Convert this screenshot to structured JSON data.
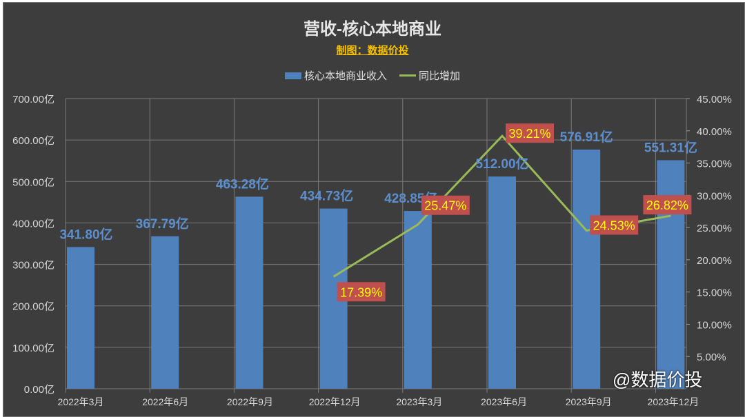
{
  "title": "营收-核心本地商业",
  "subtitle": "制图：数据价投",
  "watermark": "@数据价投",
  "chart_data": {
    "type": "bar+line",
    "title": "营收-核心本地商业",
    "categories": [
      "2022年3月",
      "2022年6月",
      "2022年9月",
      "2022年12月",
      "2023年3月",
      "2023年6月",
      "2023年9月",
      "2023年12月"
    ],
    "series": [
      {
        "name": "核心本地商业收入",
        "type": "bar",
        "axis": "left",
        "color": "#4f81bd",
        "values": [
          341.8,
          367.79,
          463.28,
          434.73,
          428.85,
          512.0,
          576.91,
          551.31
        ],
        "labels": [
          "341.80亿",
          "367.79亿",
          "463.28亿",
          "434.73亿",
          "428.85亿",
          "512.00亿",
          "576.91亿",
          "551.31亿"
        ]
      },
      {
        "name": "同比增加",
        "type": "line",
        "axis": "right",
        "color": "#9bbb59",
        "values": [
          null,
          null,
          null,
          17.39,
          25.47,
          39.21,
          24.53,
          26.82
        ],
        "labels": [
          "",
          "",
          "",
          "17.39%",
          "25.47%",
          "39.21%",
          "24.53%",
          "26.82%"
        ]
      }
    ],
    "y_left": {
      "range": [
        0,
        700
      ],
      "ticks": [
        "0.00亿",
        "100.00亿",
        "200.00亿",
        "300.00亿",
        "400.00亿",
        "500.00亿",
        "600.00亿",
        "700.00亿"
      ]
    },
    "y_right": {
      "range": [
        0,
        45
      ],
      "ticks": [
        "5.00%",
        "10.00%",
        "15.00%",
        "20.00%",
        "25.00%",
        "30.00%",
        "35.00%",
        "40.00%",
        "45.00%"
      ]
    },
    "grid": true,
    "legend": "top-center"
  }
}
